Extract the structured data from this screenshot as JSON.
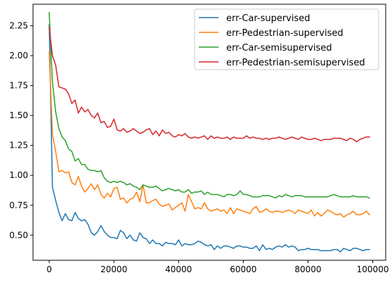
{
  "chart_data": {
    "type": "line",
    "title": "",
    "xlabel": "",
    "ylabel": "",
    "xlim": [
      -5000,
      104000
    ],
    "ylim": [
      0.29,
      2.43
    ],
    "x_ticks": [
      0,
      20000,
      40000,
      60000,
      80000,
      100000
    ],
    "x_tick_labels": [
      "0",
      "20000",
      "40000",
      "60000",
      "80000",
      "100000"
    ],
    "y_ticks": [
      0.5,
      0.75,
      1.0,
      1.25,
      1.5,
      1.75,
      2.0,
      2.25
    ],
    "y_tick_labels": [
      "0.50",
      "0.75",
      "1.00",
      "1.25",
      "1.50",
      "1.75",
      "2.00",
      "2.25"
    ],
    "grid": false,
    "legend_position": "top-right",
    "x": [
      0,
      1000,
      2000,
      3000,
      4000,
      5000,
      6000,
      7000,
      8000,
      9000,
      10000,
      11000,
      12000,
      13000,
      14000,
      15000,
      16000,
      17000,
      18000,
      19000,
      20000,
      21000,
      22000,
      23000,
      24000,
      25000,
      26000,
      27000,
      28000,
      29000,
      30000,
      31000,
      32000,
      33000,
      34000,
      35000,
      36000,
      37000,
      38000,
      39000,
      40000,
      41000,
      42000,
      43000,
      44000,
      45000,
      46000,
      47000,
      48000,
      49000,
      50000,
      51000,
      52000,
      53000,
      54000,
      55000,
      56000,
      57000,
      58000,
      59000,
      60000,
      61000,
      62000,
      63000,
      64000,
      65000,
      66000,
      67000,
      68000,
      69000,
      70000,
      71000,
      72000,
      73000,
      74000,
      75000,
      76000,
      77000,
      78000,
      79000,
      80000,
      81000,
      82000,
      83000,
      84000,
      85000,
      86000,
      87000,
      88000,
      89000,
      90000,
      91000,
      92000,
      93000,
      94000,
      95000,
      96000,
      97000,
      98000,
      99000
    ],
    "series": [
      {
        "name": "err-Car-supervised",
        "color": "#1f77b4",
        "values": [
          2.26,
          0.9,
          0.79,
          0.69,
          0.62,
          0.68,
          0.63,
          0.62,
          0.69,
          0.64,
          0.62,
          0.63,
          0.59,
          0.52,
          0.5,
          0.53,
          0.58,
          0.53,
          0.5,
          0.48,
          0.48,
          0.47,
          0.54,
          0.52,
          0.47,
          0.5,
          0.46,
          0.45,
          0.52,
          0.48,
          0.47,
          0.43,
          0.46,
          0.43,
          0.43,
          0.41,
          0.44,
          0.43,
          0.43,
          0.42,
          0.46,
          0.41,
          0.43,
          0.42,
          0.42,
          0.43,
          0.45,
          0.44,
          0.42,
          0.41,
          0.42,
          0.38,
          0.41,
          0.39,
          0.41,
          0.41,
          0.4,
          0.39,
          0.41,
          0.41,
          0.4,
          0.4,
          0.39,
          0.39,
          0.41,
          0.37,
          0.42,
          0.38,
          0.39,
          0.38,
          0.4,
          0.41,
          0.4,
          0.42,
          0.4,
          0.41,
          0.4,
          0.37,
          0.38,
          0.38,
          0.39,
          0.38,
          0.38,
          0.38,
          0.37,
          0.37,
          0.37,
          0.37,
          0.38,
          0.38,
          0.36,
          0.39,
          0.38,
          0.37,
          0.39,
          0.39,
          0.38,
          0.37,
          0.38,
          0.38
        ]
      },
      {
        "name": "err-Pedestrian-supervised",
        "color": "#ff7f0e",
        "values": [
          2.03,
          1.34,
          1.2,
          1.03,
          1.04,
          1.02,
          1.03,
          0.94,
          0.92,
          0.99,
          0.91,
          0.86,
          0.89,
          0.93,
          0.88,
          0.92,
          0.84,
          0.81,
          0.85,
          0.82,
          0.89,
          0.9,
          0.8,
          0.81,
          0.77,
          0.8,
          0.81,
          0.86,
          0.78,
          0.92,
          0.77,
          0.77,
          0.79,
          0.8,
          0.76,
          0.74,
          0.75,
          0.76,
          0.71,
          0.73,
          0.75,
          0.77,
          0.7,
          0.84,
          0.78,
          0.72,
          0.73,
          0.72,
          0.77,
          0.72,
          0.7,
          0.71,
          0.72,
          0.7,
          0.71,
          0.68,
          0.73,
          0.68,
          0.72,
          0.71,
          0.7,
          0.69,
          0.68,
          0.72,
          0.74,
          0.69,
          0.7,
          0.72,
          0.7,
          0.69,
          0.7,
          0.7,
          0.69,
          0.7,
          0.71,
          0.7,
          0.68,
          0.71,
          0.7,
          0.69,
          0.68,
          0.71,
          0.66,
          0.69,
          0.66,
          0.68,
          0.71,
          0.7,
          0.68,
          0.67,
          0.68,
          0.65,
          0.67,
          0.68,
          0.7,
          0.67,
          0.67,
          0.68,
          0.7,
          0.67
        ]
      },
      {
        "name": "err-Car-semisupervised",
        "color": "#2ca02c",
        "values": [
          2.36,
          1.78,
          1.53,
          1.39,
          1.32,
          1.29,
          1.22,
          1.2,
          1.12,
          1.14,
          1.09,
          1.09,
          1.05,
          1.04,
          1.04,
          1.03,
          1.04,
          0.98,
          0.95,
          0.94,
          0.95,
          0.94,
          0.95,
          0.94,
          0.92,
          0.93,
          0.91,
          0.9,
          0.88,
          0.92,
          0.91,
          0.9,
          0.9,
          0.91,
          0.89,
          0.87,
          0.88,
          0.89,
          0.88,
          0.87,
          0.88,
          0.86,
          0.86,
          0.88,
          0.85,
          0.86,
          0.86,
          0.87,
          0.84,
          0.86,
          0.84,
          0.84,
          0.84,
          0.83,
          0.82,
          0.84,
          0.84,
          0.83,
          0.84,
          0.87,
          0.84,
          0.84,
          0.83,
          0.82,
          0.82,
          0.82,
          0.83,
          0.83,
          0.83,
          0.82,
          0.81,
          0.83,
          0.82,
          0.84,
          0.83,
          0.82,
          0.83,
          0.83,
          0.83,
          0.82,
          0.82,
          0.82,
          0.82,
          0.82,
          0.82,
          0.82,
          0.82,
          0.83,
          0.84,
          0.83,
          0.82,
          0.82,
          0.82,
          0.82,
          0.83,
          0.82,
          0.82,
          0.82,
          0.82,
          0.81
        ]
      },
      {
        "name": "err-Pedestrian-semisupervised",
        "color": "#d62728",
        "values": [
          2.24,
          2.0,
          1.92,
          1.74,
          1.73,
          1.72,
          1.68,
          1.6,
          1.63,
          1.52,
          1.57,
          1.53,
          1.55,
          1.5,
          1.48,
          1.52,
          1.44,
          1.45,
          1.4,
          1.41,
          1.47,
          1.38,
          1.37,
          1.39,
          1.36,
          1.37,
          1.39,
          1.37,
          1.35,
          1.36,
          1.38,
          1.39,
          1.34,
          1.37,
          1.33,
          1.38,
          1.35,
          1.36,
          1.33,
          1.32,
          1.34,
          1.33,
          1.35,
          1.32,
          1.31,
          1.32,
          1.31,
          1.32,
          1.33,
          1.3,
          1.33,
          1.31,
          1.32,
          1.31,
          1.31,
          1.32,
          1.3,
          1.32,
          1.31,
          1.31,
          1.31,
          1.33,
          1.31,
          1.32,
          1.31,
          1.31,
          1.3,
          1.31,
          1.3,
          1.31,
          1.31,
          1.32,
          1.31,
          1.3,
          1.31,
          1.32,
          1.31,
          1.3,
          1.32,
          1.31,
          1.3,
          1.3,
          1.31,
          1.3,
          1.29,
          1.3,
          1.3,
          1.3,
          1.31,
          1.31,
          1.31,
          1.3,
          1.29,
          1.31,
          1.3,
          1.28,
          1.3,
          1.31,
          1.32,
          1.32
        ]
      }
    ]
  }
}
